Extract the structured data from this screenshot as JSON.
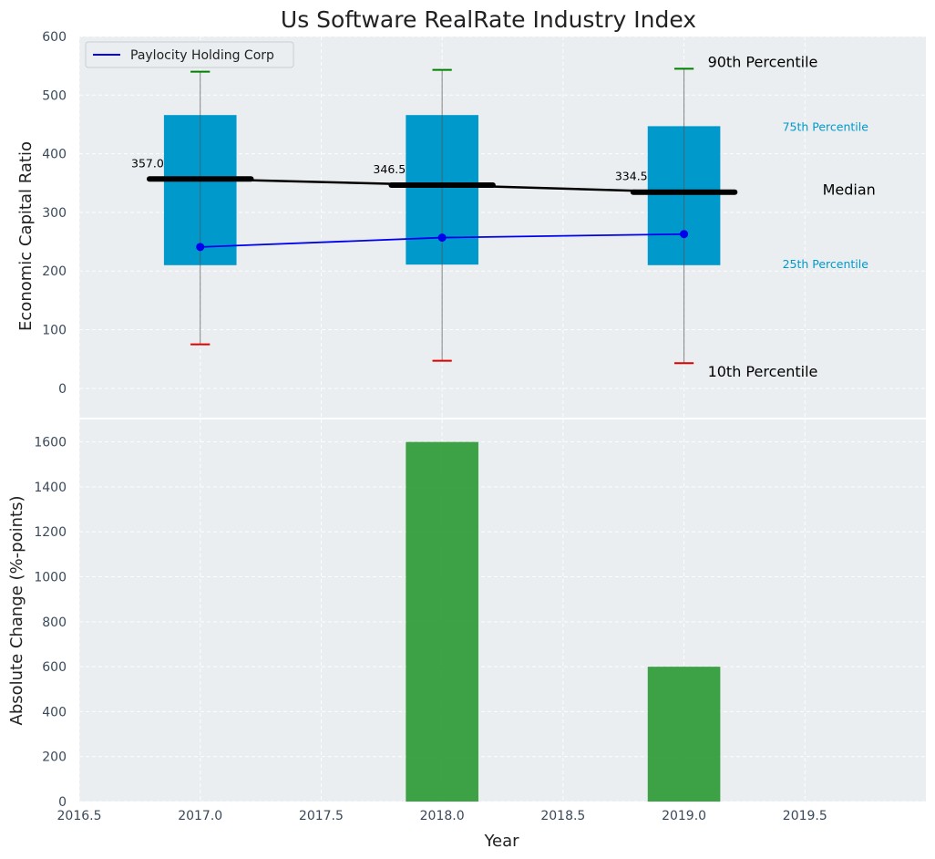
{
  "chart_data": [
    {
      "type": "box",
      "title": "Us Software RealRate Industry Index",
      "ylabel": "Economic Capital Ratio",
      "ylim": [
        -50,
        600
      ],
      "xlim": [
        2016.5,
        2020.0
      ],
      "y_ticks": [
        0,
        100,
        200,
        300,
        400,
        500,
        600
      ],
      "grid": true,
      "legend_position": "top-left",
      "colors": {
        "box": "#0099cc",
        "median": "#000000",
        "company": "#0000ee",
        "p90_cap": "#008000",
        "p10_cap": "#dd0000",
        "background": "#eaeef0"
      },
      "years": [
        2017,
        2018,
        2019
      ],
      "p10": [
        75,
        47,
        43
      ],
      "p25": [
        210,
        211,
        210
      ],
      "median": [
        357.0,
        346.5,
        334.5
      ],
      "median_labels": [
        "357.0",
        "346.5",
        "334.5"
      ],
      "p75": [
        466,
        466,
        447
      ],
      "p90": [
        540,
        543,
        545
      ],
      "series": [
        {
          "name": "Paylocity Holding Corp",
          "values": [
            241,
            257,
            263
          ]
        }
      ],
      "annotations": {
        "p90": "90th Percentile",
        "p75": "75th Percentile",
        "median": "Median",
        "p25": "25th Percentile",
        "p10": "10th Percentile"
      }
    },
    {
      "type": "bar",
      "xlabel": "Year",
      "ylabel": "Absolute Change (%-points)",
      "ylim": [
        0,
        1700
      ],
      "xlim": [
        2016.5,
        2020.0
      ],
      "y_ticks": [
        0,
        200,
        400,
        600,
        800,
        1000,
        1200,
        1400,
        1600
      ],
      "x_ticks": [
        2016.5,
        2017.0,
        2017.5,
        2018.0,
        2018.5,
        2019.0,
        2019.5
      ],
      "x_tick_labels": [
        "2016.5",
        "2017.0",
        "2017.5",
        "2018.0",
        "2018.5",
        "2019.0",
        "2019.5"
      ],
      "grid": true,
      "colors": {
        "bar": "#2e9a36",
        "background": "#eaeef0"
      },
      "x": [
        2018,
        2019
      ],
      "values": [
        1600,
        600
      ]
    }
  ]
}
